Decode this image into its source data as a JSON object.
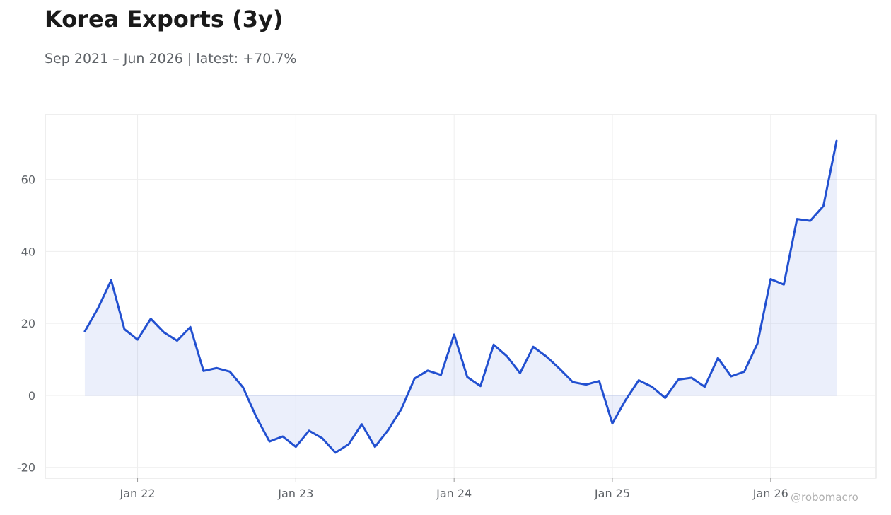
{
  "header": {
    "title": "Korea Exports (3y)",
    "subtitle": "Sep 2021 – Jun 2026 | latest: +70.7%"
  },
  "watermark": "@robomacro",
  "colors": {
    "line": "#2250d0",
    "fill": "#2250d0",
    "grid": "#eeeeee",
    "frame": "#dddddd"
  },
  "chart_data": {
    "type": "area",
    "title": "Korea Exports (3y)",
    "xlabel": "",
    "ylabel": "",
    "grid": true,
    "legend": "none",
    "x_tick_labels": [
      "Jan 22",
      "Jan 23",
      "Jan 24",
      "Jan 25",
      "Jan 26"
    ],
    "x_tick_dates": [
      "2022-01",
      "2023-01",
      "2024-01",
      "2025-01",
      "2026-01"
    ],
    "y_ticks": [
      -20,
      0,
      20,
      40,
      60
    ],
    "ylim": [
      -23,
      78
    ],
    "xlim": [
      "2021-06",
      "2026-09"
    ],
    "series": [
      {
        "x": [
          "2021-09",
          "2021-10",
          "2021-11",
          "2021-12",
          "2022-01",
          "2022-02",
          "2022-03",
          "2022-04",
          "2022-05",
          "2022-06",
          "2022-07",
          "2022-08",
          "2022-09",
          "2022-10",
          "2022-11",
          "2022-12",
          "2023-01",
          "2023-02",
          "2023-03",
          "2023-04",
          "2023-05",
          "2023-06",
          "2023-07",
          "2023-08",
          "2023-09",
          "2023-10",
          "2023-11",
          "2023-12",
          "2024-01",
          "2024-02",
          "2024-03",
          "2024-04",
          "2024-05",
          "2024-06",
          "2024-07",
          "2024-08",
          "2024-09",
          "2024-10",
          "2024-11",
          "2024-12",
          "2025-01",
          "2025-02",
          "2025-03",
          "2025-04",
          "2025-05",
          "2025-06",
          "2025-07",
          "2025-08",
          "2025-09",
          "2025-10",
          "2025-11",
          "2025-12",
          "2026-01",
          "2026-02",
          "2026-03",
          "2026-04",
          "2026-05",
          "2026-06"
        ],
        "values": [
          17.8,
          24.2,
          32.0,
          18.4,
          15.5,
          21.3,
          17.5,
          15.2,
          19.0,
          6.8,
          7.6,
          6.6,
          2.2,
          -6.0,
          -12.8,
          -11.4,
          -14.3,
          -9.8,
          -11.9,
          -15.9,
          -13.6,
          -8.0,
          -14.3,
          -9.6,
          -3.8,
          4.7,
          6.9,
          5.7,
          16.9,
          5.1,
          2.6,
          14.1,
          10.9,
          6.2,
          13.5,
          10.8,
          7.4,
          3.7,
          3.0,
          4.0,
          -7.8,
          -1.3,
          4.2,
          2.4,
          -0.7,
          4.4,
          4.9,
          2.4,
          10.4,
          5.3,
          6.6,
          14.4,
          32.3,
          30.8,
          49.0,
          48.5,
          52.6,
          70.7
        ]
      }
    ]
  }
}
